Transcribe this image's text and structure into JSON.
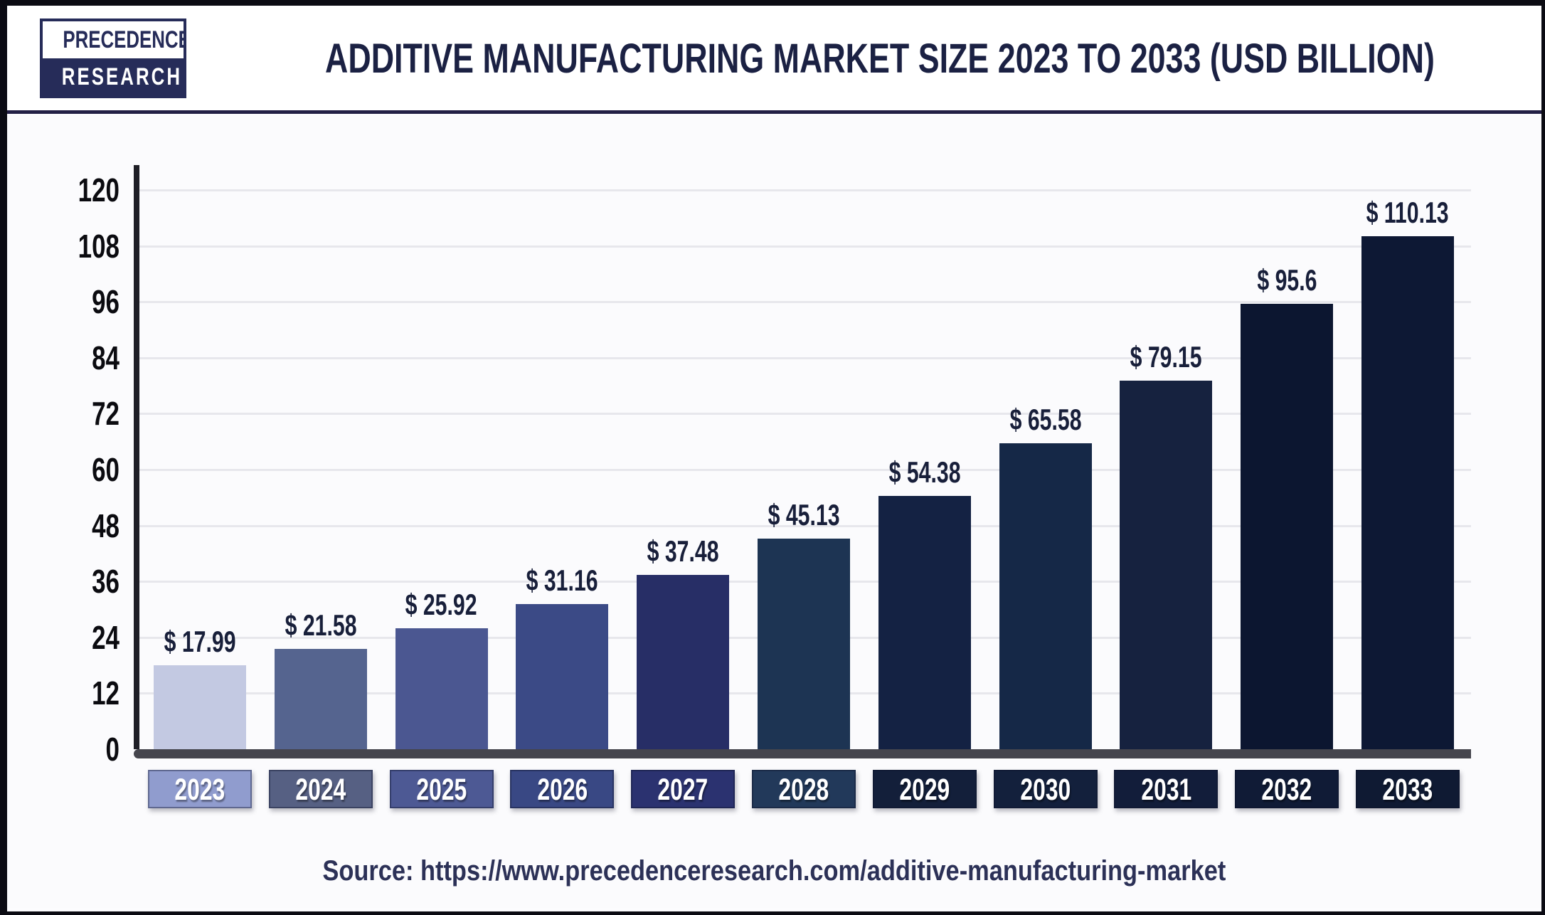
{
  "header": {
    "logo": {
      "line1": "PRECEDENCE",
      "line2": "RESEARCH"
    },
    "title": "ADDITIVE MANUFACTURING MARKET SIZE 2023 TO 2033 (USD BILLION)"
  },
  "chart_data": {
    "type": "bar",
    "title": "Additive Manufacturing Market Size 2023 to 2033 (USD Billion)",
    "categories": [
      "2023",
      "2024",
      "2025",
      "2026",
      "2027",
      "2028",
      "2029",
      "2030",
      "2031",
      "2032",
      "2033"
    ],
    "values": [
      17.99,
      21.58,
      25.92,
      31.16,
      37.48,
      45.13,
      54.38,
      65.58,
      79.15,
      95.6,
      110.13
    ],
    "value_labels": [
      "$ 17.99",
      "$ 21.58",
      "$ 25.92",
      "$ 31.16",
      "$ 37.48",
      "$ 45.13",
      "$ 54.38",
      "$ 65.58",
      "$ 79.15",
      "$ 95.6",
      "$ 110.13"
    ],
    "unit": "USD Billion",
    "xlabel": "",
    "ylabel": "",
    "ylim": [
      0,
      120
    ],
    "yticks": [
      0,
      12,
      24,
      36,
      48,
      60,
      72,
      84,
      96,
      108,
      120
    ],
    "grid": true,
    "legend": "none",
    "bar_colors": [
      "#c3c9e2",
      "#55648f",
      "#4b5791",
      "#3b4a86",
      "#272e66",
      "#1d3453",
      "#142243",
      "#152847",
      "#16223f",
      "#0c1630",
      "#0d1834"
    ],
    "tick_box_colors": [
      "#909cce",
      "#566083",
      "#4d5994",
      "#394884",
      "#2b3270",
      "#22395a",
      "#131f3a",
      "#13203c",
      "#121d3a",
      "#101b36",
      "#0f1a33"
    ],
    "gridline_color": "#e7e7ec",
    "axis_line_color": "#1e1e26",
    "baseline_color": "#45454d",
    "value_label_color": "#181f3a"
  },
  "footer": {
    "source": "Source: https://www.precedenceresearch.com/additive-manufacturing-market"
  }
}
